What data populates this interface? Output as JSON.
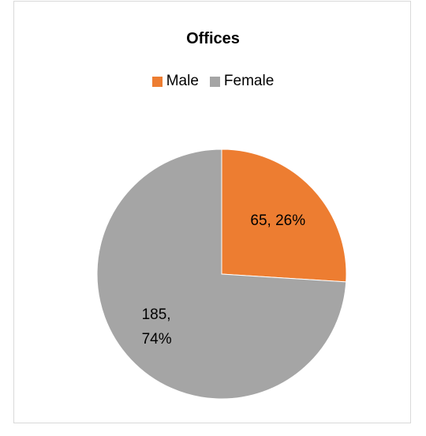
{
  "chart_data": {
    "type": "pie",
    "title": "Offices",
    "categories": [
      "Male",
      "Female"
    ],
    "values": [
      65,
      185
    ],
    "value_labels": [
      "65, 26%",
      "185, 74%"
    ],
    "colors": [
      "#ed7d31",
      "#a5a5a5"
    ],
    "legend": "top"
  }
}
